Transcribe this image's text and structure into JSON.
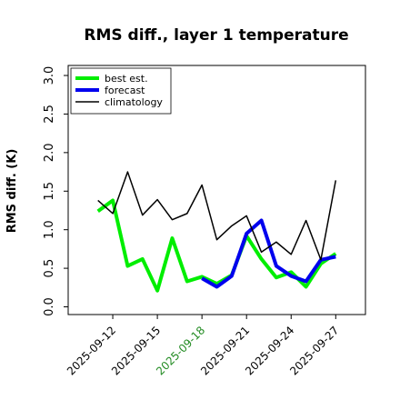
{
  "chart_data": {
    "type": "line",
    "title": "RMS diff., layer 1 temperature",
    "y_label": "RMS diff. (K)",
    "x": [
      "2025-09-11",
      "2025-09-12",
      "2025-09-13",
      "2025-09-14",
      "2025-09-15",
      "2025-09-16",
      "2025-09-17",
      "2025-09-18",
      "2025-09-19",
      "2025-09-20",
      "2025-09-21",
      "2025-09-22",
      "2025-09-23",
      "2025-09-24",
      "2025-09-25",
      "2025-09-26",
      "2025-09-27"
    ],
    "series": [
      {
        "name": "best est.",
        "color": "#00ee00",
        "width": 4,
        "values": [
          1.24,
          1.38,
          0.53,
          0.62,
          0.21,
          0.89,
          0.33,
          0.39,
          0.3,
          0.41,
          0.92,
          0.62,
          0.38,
          0.45,
          0.26,
          0.56,
          0.69
        ]
      },
      {
        "name": "forecast",
        "color": "#0000ee",
        "width": 4,
        "values": [
          null,
          null,
          null,
          null,
          null,
          null,
          null,
          0.37,
          0.26,
          0.4,
          0.95,
          1.12,
          0.53,
          0.4,
          0.33,
          0.61,
          0.65
        ]
      },
      {
        "name": "climatology",
        "color": "#000000",
        "width": 1.5,
        "values": [
          1.38,
          1.21,
          1.75,
          1.19,
          1.39,
          1.13,
          1.21,
          1.58,
          0.87,
          1.05,
          1.18,
          0.71,
          0.84,
          0.68,
          1.12,
          0.61,
          1.64
        ]
      }
    ],
    "xlim": [
      "2025-09-09",
      "2025-09-29"
    ],
    "xticks": [
      "2025-09-12",
      "2025-09-15",
      "2025-09-18",
      "2025-09-21",
      "2025-09-24",
      "2025-09-27"
    ],
    "xtick_label_colors": [
      "#000000",
      "#000000",
      "#228b22",
      "#000000",
      "#000000",
      "#000000"
    ],
    "ylim": [
      -0.1,
      3.13
    ],
    "yticks": [
      {
        "value": 0,
        "label": "0.0"
      },
      {
        "value": 0.5,
        "label": "0.5"
      },
      {
        "value": 1,
        "label": "1.0"
      },
      {
        "value": 1.5,
        "label": "1.5"
      },
      {
        "value": 2,
        "label": "2.0"
      },
      {
        "value": 2.5,
        "label": "2.5"
      },
      {
        "value": 3,
        "label": "3.0"
      }
    ],
    "legend": "upper left"
  }
}
